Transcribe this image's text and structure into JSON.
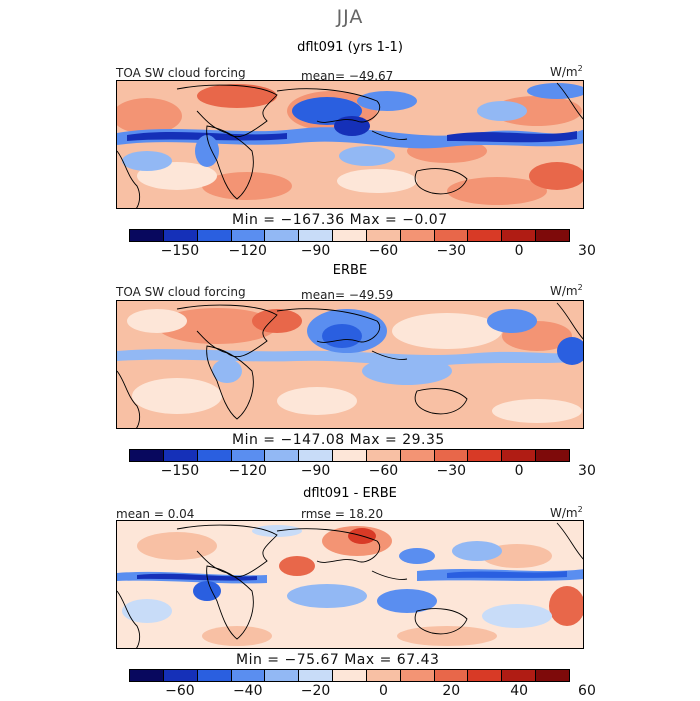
{
  "page_title": "JJA",
  "units": "W/m",
  "units_sup": "2",
  "palette": [
    "#08085e",
    "#1530b8",
    "#2a5fe0",
    "#5a8ef0",
    "#92b8f4",
    "#c8dcf8",
    "#fde6d8",
    "#f8c0a4",
    "#f39474",
    "#e8674a",
    "#d83a26",
    "#b01c14",
    "#7e0a0a"
  ],
  "panels": [
    {
      "title": "dflt091 (yrs 1-1)",
      "left_label": "TOA SW cloud forcing",
      "center_label": "mean= −49.67",
      "minmax": "Min = −167.36  Max =  −0.07",
      "ticks": [
        "−150",
        "−120",
        "−90",
        "−60",
        "−30",
        "0",
        "30"
      ]
    },
    {
      "title": "ERBE",
      "left_label": "TOA SW cloud forcing",
      "center_label": "mean= −49.59",
      "minmax": "Min = −147.08  Max =  29.35",
      "ticks": [
        "−150",
        "−120",
        "−90",
        "−60",
        "−30",
        "0",
        "30"
      ]
    },
    {
      "title": "dflt091 - ERBE",
      "left_label": "mean =   0.04",
      "center_label": "rmse =  18.20",
      "minmax": "Min = −75.67  Max =  67.43",
      "ticks": [
        "−60",
        "−40",
        "−20",
        "0",
        "20",
        "40",
        "60"
      ]
    }
  ],
  "chart_data": [
    {
      "type": "heatmap",
      "title": "dflt091 (yrs 1-1)",
      "variable": "TOA SW cloud forcing",
      "units": "W/m2",
      "mean": -49.67,
      "min": -167.36,
      "max": -0.07,
      "colorbar_ticks": [
        -150,
        -120,
        -90,
        -60,
        -30,
        0,
        30
      ]
    },
    {
      "type": "heatmap",
      "title": "ERBE",
      "variable": "TOA SW cloud forcing",
      "units": "W/m2",
      "mean": -49.59,
      "min": -147.08,
      "max": 29.35,
      "colorbar_ticks": [
        -150,
        -120,
        -90,
        -60,
        -30,
        0,
        30
      ]
    },
    {
      "type": "heatmap",
      "title": "dflt091 - ERBE",
      "units": "W/m2",
      "mean": 0.04,
      "rmse": 18.2,
      "min": -75.67,
      "max": 67.43,
      "colorbar_ticks": [
        -60,
        -40,
        -20,
        0,
        20,
        40,
        60
      ]
    }
  ]
}
